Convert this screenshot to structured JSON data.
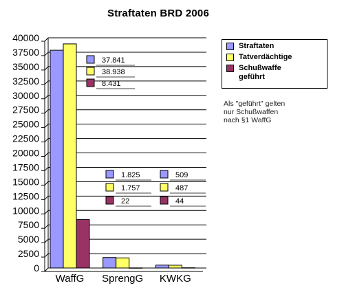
{
  "chart_data": {
    "type": "bar",
    "title": "Straftaten  BRD  2006",
    "categories": [
      "WaffG",
      "SprengG",
      "KWKG"
    ],
    "series": [
      {
        "name": "Straftaten",
        "color": "#9999ff",
        "values": [
          37841,
          1825,
          509
        ]
      },
      {
        "name": "Tatverdächtige",
        "color": "#ffff66",
        "values": [
          38938,
          1757,
          487
        ]
      },
      {
        "name": "Schußwaffe geführt",
        "color": "#993366",
        "values": [
          8431,
          22,
          44
        ]
      }
    ],
    "value_labels": [
      [
        "37.841",
        "38.938",
        "8.431"
      ],
      [
        "1.825",
        "1.757",
        "22"
      ],
      [
        "509",
        "487",
        "44"
      ]
    ],
    "yticks": [
      "0",
      "2500",
      "5000",
      "7500",
      "10000",
      "12500",
      "15000",
      "17500",
      "20000",
      "22500",
      "25000",
      "27500",
      "30000",
      "32500",
      "35000",
      "37500",
      "40000"
    ],
    "ylim": [
      0,
      40000
    ],
    "grid": true,
    "legend_position": "right"
  },
  "legend": {
    "items": [
      {
        "label": "Straftaten",
        "color": "#9999ff"
      },
      {
        "label": "Tatverdächtige",
        "color": "#ffff66"
      },
      {
        "label": "Schußwaffe geführt",
        "color": "#993366"
      }
    ]
  },
  "note": {
    "lines": [
      "Als \"geführt\" gelten",
      "nur Schußwaffen",
      "nach §1 WaffG"
    ]
  }
}
